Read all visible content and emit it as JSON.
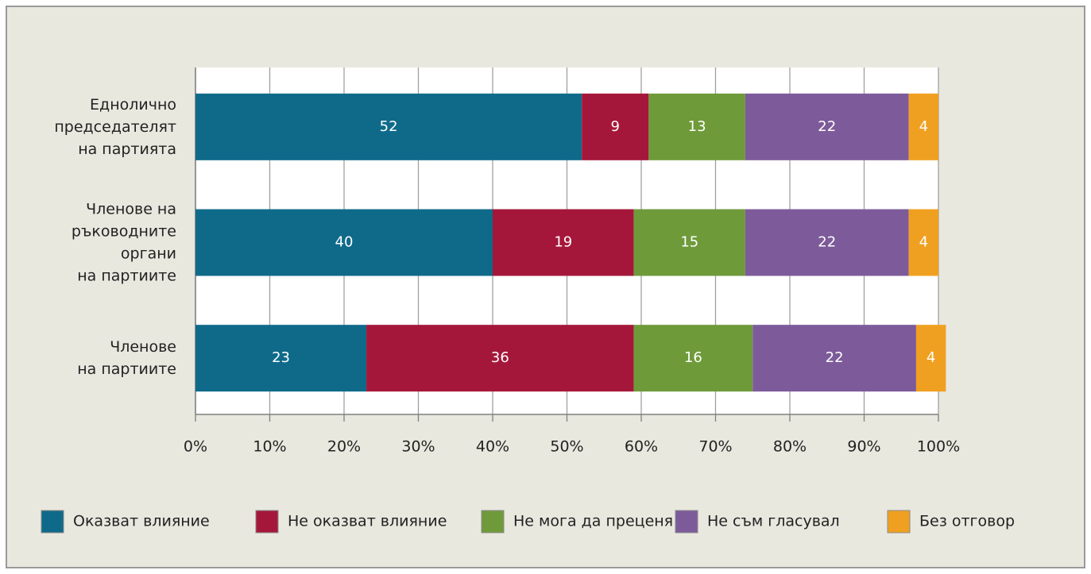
{
  "chart_data": {
    "type": "stacked-bar-horizontal",
    "categories": [
      "Еднолично\nпредседателят\nна партията",
      "Членове на\nръководните\nоргани\nна партиите",
      "Членове\nна партиите"
    ],
    "series": [
      {
        "name": "Оказват влияние",
        "color": "#0f6a8a",
        "values": [
          52,
          40,
          23
        ]
      },
      {
        "name": "Не оказват влияние",
        "color": "#a5173a",
        "values": [
          9,
          19,
          36
        ]
      },
      {
        "name": "Не мога да преценя",
        "color": "#6f9a3a",
        "values": [
          13,
          15,
          16
        ]
      },
      {
        "name": "Не съм гласувал",
        "color": "#7d5b9a",
        "values": [
          22,
          22,
          22
        ]
      },
      {
        "name": "Без отговор",
        "color": "#f0a020",
        "values": [
          4,
          4,
          4
        ]
      }
    ],
    "xlim": [
      0,
      100
    ],
    "xticks": [
      {
        "value": 0,
        "label": "0%"
      },
      {
        "value": 10,
        "label": "10%"
      },
      {
        "value": 20,
        "label": "20%"
      },
      {
        "value": 30,
        "label": "30%"
      },
      {
        "value": 40,
        "label": "40%"
      },
      {
        "value": 50,
        "label": "50%"
      },
      {
        "value": 60,
        "label": "60%"
      },
      {
        "value": 70,
        "label": "70%"
      },
      {
        "value": 80,
        "label": "80%"
      },
      {
        "value": 90,
        "label": "90%"
      },
      {
        "value": 100,
        "label": "100%"
      }
    ],
    "grid": true,
    "legend": "bottom"
  }
}
